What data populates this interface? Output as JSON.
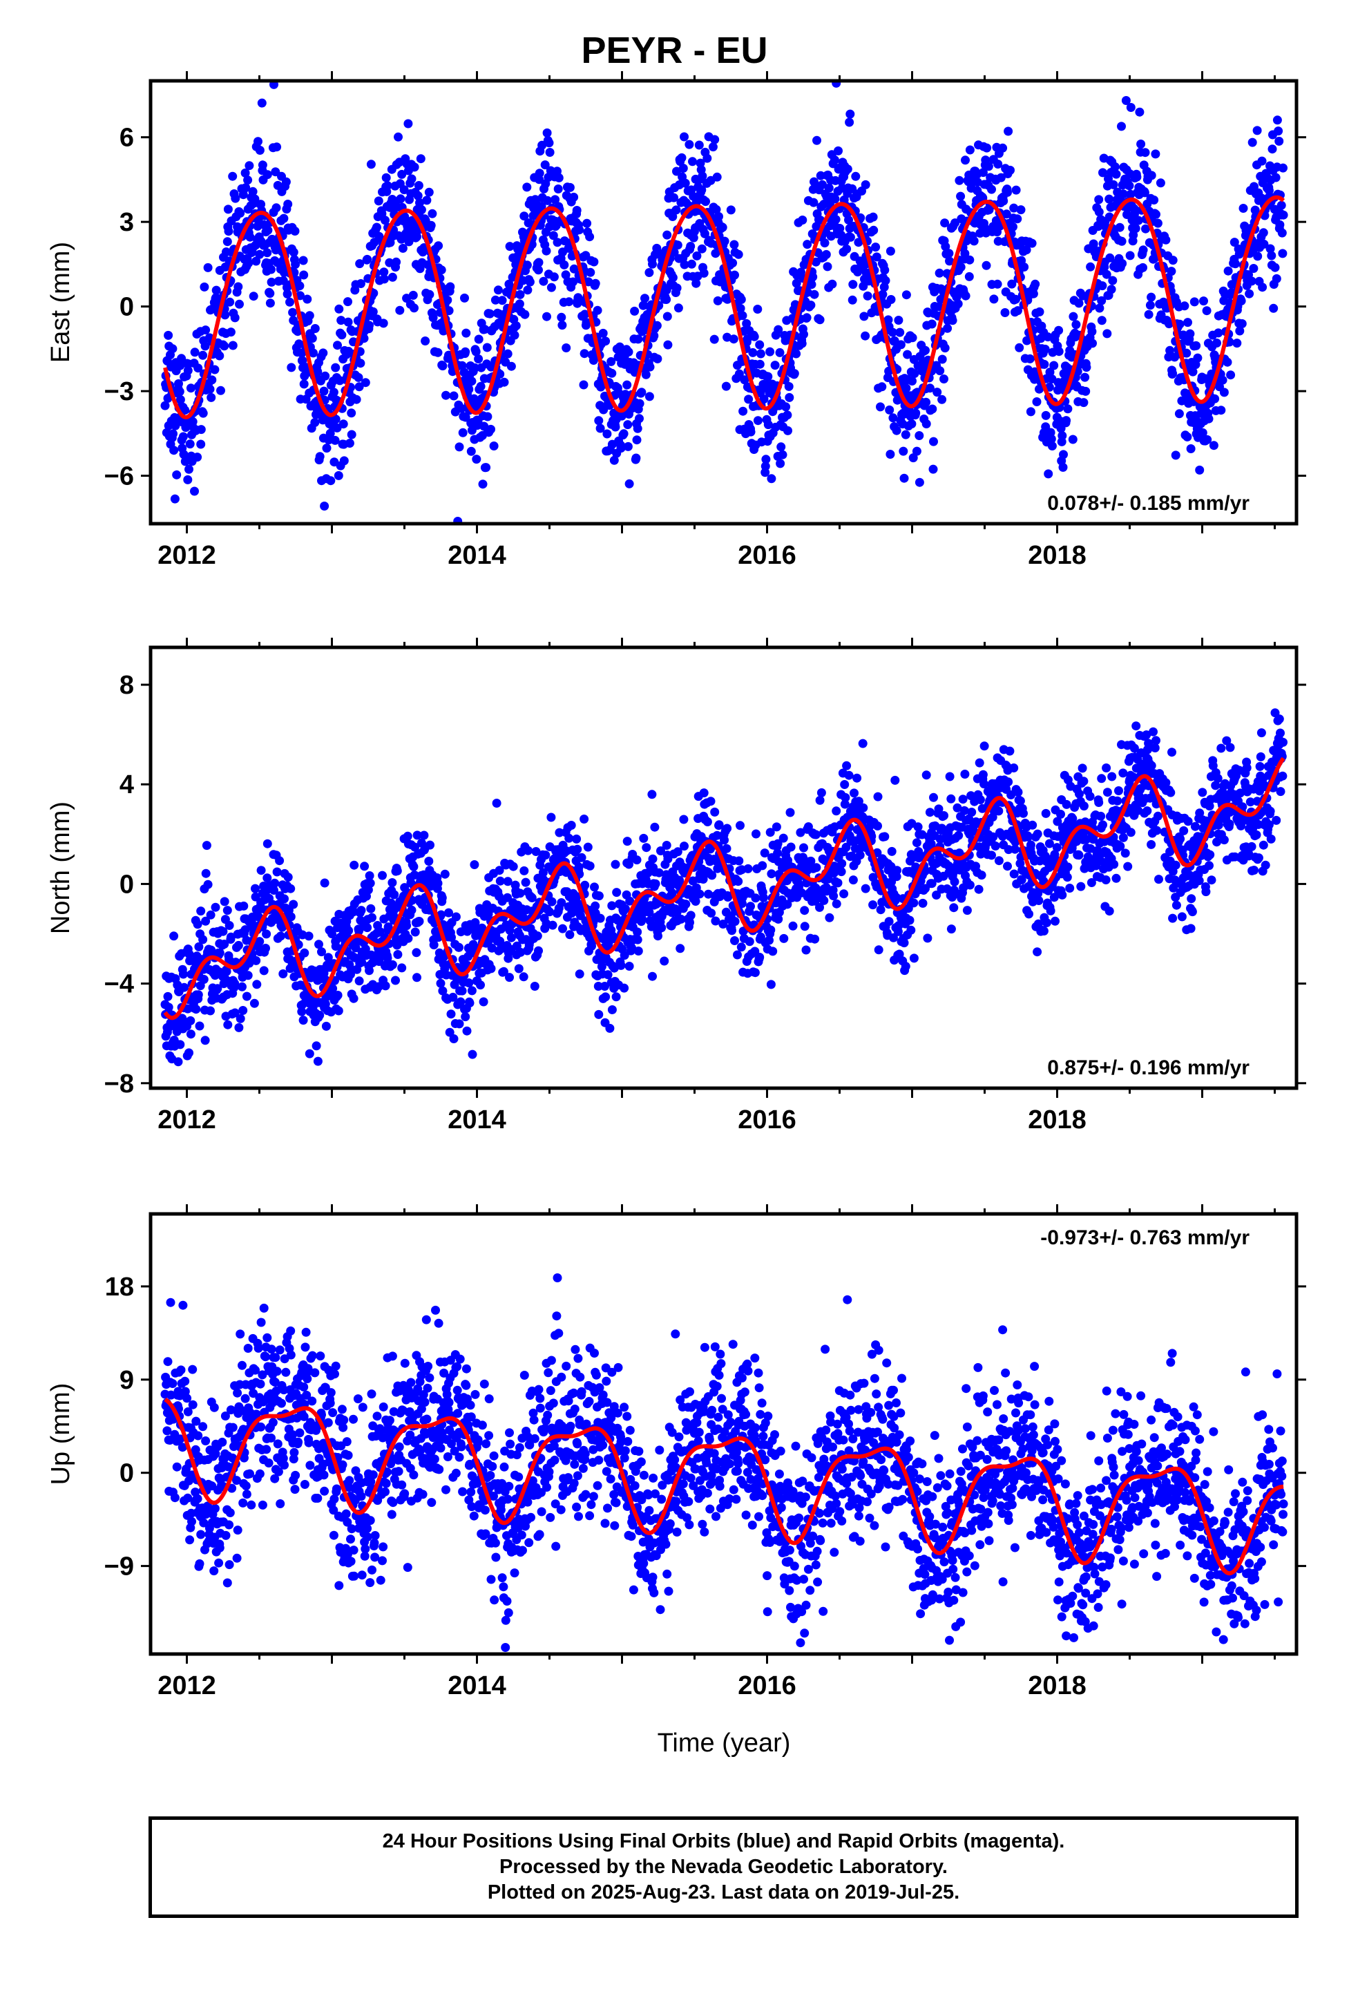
{
  "title": "PEYR - EU",
  "xlabel": "Time (year)",
  "footer": {
    "line1": "24 Hour Positions Using Final Orbits (blue) and Rapid Orbits (magenta).",
    "line2": "Processed by the Nevada Geodetic Laboratory.",
    "line3": "Plotted on 2025-Aug-23. Last data on 2019-Jul-25."
  },
  "colors": {
    "points": "#0000ff",
    "fit": "#ff0000",
    "rapid": "#ff00ff"
  },
  "chart_data": [
    {
      "type": "scatter",
      "ylabel": "East (mm)",
      "rate_text": "0.078+/- 0.185 mm/yr",
      "rate_position": "bottom-right",
      "xlim": [
        2011.75,
        2019.65
      ],
      "ylim": [
        -7.7,
        8.0
      ],
      "yticks": [
        -6,
        -3,
        0,
        3,
        6
      ],
      "xticks": [
        2012,
        2014,
        2016,
        2018
      ],
      "model": {
        "offset": -0.05,
        "rate": 0.078,
        "annual": 3.6,
        "annual_phase": 0.25,
        "semiannual": 0.3,
        "semiannual_phase": 0.1,
        "scatter": 1.3
      },
      "data_range": [
        2011.85,
        2019.56
      ],
      "series": [
        {
          "name": "Final Orbits",
          "values": []
        },
        {
          "name": "Fit",
          "values": []
        }
      ]
    },
    {
      "type": "scatter",
      "ylabel": "North (mm)",
      "rate_text": "0.875+/- 0.196 mm/yr",
      "rate_position": "bottom-right",
      "xlim": [
        2011.75,
        2019.65
      ],
      "ylim": [
        -8.2,
        9.5
      ],
      "yticks": [
        -8,
        -4,
        0,
        4,
        8
      ],
      "xticks": [
        2012,
        2014,
        2016,
        2018
      ],
      "model": {
        "offset": -3.5,
        "rate": 0.875,
        "annual": 1.2,
        "annual_phase": 0.25,
        "semiannual": 1.0,
        "semiannual_phase": 0.0,
        "scatter": 1.2
      },
      "data_range": [
        2011.85,
        2019.56
      ],
      "series": [
        {
          "name": "Final Orbits",
          "values": []
        },
        {
          "name": "Fit",
          "values": []
        }
      ]
    },
    {
      "type": "scatter",
      "ylabel": "Up (mm)",
      "rate_text": "-0.973+/- 0.763 mm/yr",
      "rate_position": "top-right",
      "xlim": [
        2011.75,
        2019.65
      ],
      "ylim": [
        -17.5,
        25.0
      ],
      "yticks": [
        -9,
        0,
        9,
        18
      ],
      "xticks": [
        2012,
        2014,
        2016,
        2018
      ],
      "model": {
        "offset": 3.5,
        "rate": -0.973,
        "annual": 4.5,
        "annual_phase": 0.45,
        "semiannual": 1.6,
        "semiannual_phase": 0.3,
        "scatter": 4.0
      },
      "data_range": [
        2011.85,
        2019.56
      ],
      "series": [
        {
          "name": "Final Orbits",
          "values": []
        },
        {
          "name": "Fit",
          "values": []
        }
      ]
    }
  ]
}
